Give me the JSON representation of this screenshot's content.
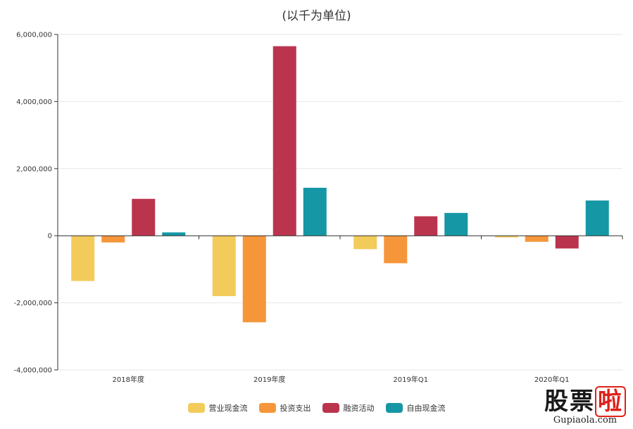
{
  "chart_data": {
    "type": "bar",
    "title": "(以千为单位)",
    "categories": [
      "2018年度",
      "2019年度",
      "2019年Q1",
      "2020年Q1"
    ],
    "series": [
      {
        "name": "营业现金流",
        "color": "#f2cb5b",
        "values": [
          -1350000,
          -1800000,
          -400000,
          -50000
        ]
      },
      {
        "name": "投资支出",
        "color": "#f6963a",
        "values": [
          -200000,
          -2580000,
          -820000,
          -180000
        ]
      },
      {
        "name": "融资活动",
        "color": "#bb344d",
        "values": [
          1100000,
          5650000,
          580000,
          -380000
        ]
      },
      {
        "name": "自由现金流",
        "color": "#1597a5",
        "values": [
          100000,
          1430000,
          680000,
          1050000
        ]
      }
    ],
    "ylim": [
      -4000000,
      6000000
    ],
    "yticks": [
      "6,000,000",
      "4,000,000",
      "2,000,000",
      "0",
      "-2,000,000",
      "-4,000,000"
    ],
    "ytick_values": [
      6000000,
      4000000,
      2000000,
      0,
      -2000000,
      -4000000
    ],
    "grid": true,
    "legend_position": "bottom"
  },
  "watermark": {
    "logo_text": "股票",
    "logo_accent": "啦",
    "url": "Gupiaola.com"
  }
}
